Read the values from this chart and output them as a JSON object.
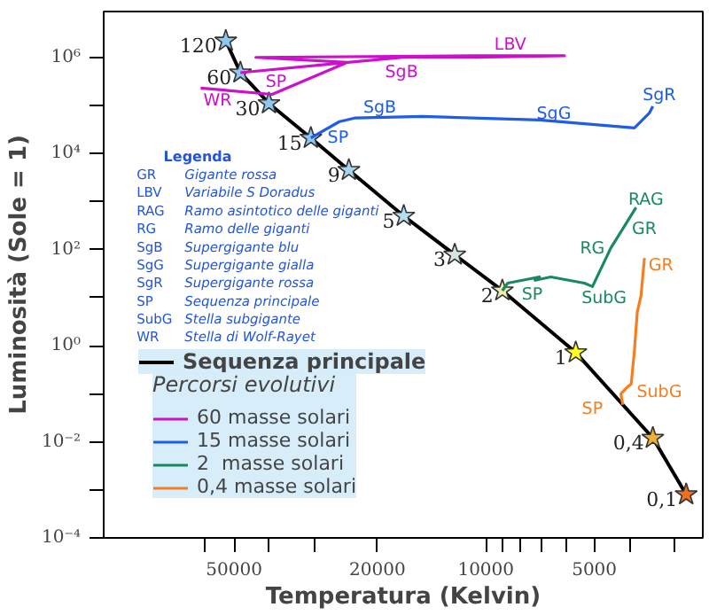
{
  "chart_data": {
    "type": "line",
    "xlabel": "Temperatura (Kelvin)",
    "ylabel": "Luminosità (Sole = 1)",
    "log": "xy",
    "xlim": [
      115000,
      2500
    ],
    "ylim": [
      0.0001,
      9000000
    ],
    "xticks": [
      {
        "value": 60000,
        "label": null
      },
      50000,
      {
        "value": 40000,
        "label": null
      },
      {
        "value": 30000,
        "label": null
      },
      20000,
      10000,
      {
        "value": 9000,
        "label": null
      },
      {
        "value": 8000,
        "label": null
      },
      {
        "value": 7000,
        "label": null
      },
      {
        "value": 6000,
        "label": null
      },
      5000,
      {
        "value": 4000,
        "label": null
      },
      {
        "value": 3000,
        "label": null
      }
    ],
    "yticks": [
      {
        "value": 0.0001,
        "label": "10⁻⁴"
      },
      {
        "value": 0.001,
        "label": null
      },
      {
        "value": 0.01,
        "label": "10⁻²"
      },
      {
        "value": 0.1,
        "label": null
      },
      {
        "value": 1,
        "label": "10⁰"
      },
      {
        "value": 10,
        "label": null
      },
      {
        "value": 100,
        "label": "10²"
      },
      {
        "value": 1000,
        "label": null
      },
      {
        "value": 10000,
        "label": "10⁴"
      },
      {
        "value": 100000,
        "label": null
      },
      {
        "value": 1000000,
        "label": "10⁶"
      }
    ],
    "legend": "bottom left",
    "legend_title": "Percorsi evolutivi",
    "grid": false,
    "series": [
      {
        "name": "Sequenza principale",
        "color": "#000000",
        "marker": "star",
        "colors": [
          "#8ec8f0",
          "#8ec8f0",
          "#8ec8f0",
          "#8ec8f0",
          "#a8d4f0",
          "#b8dcf0",
          "#d8e4e0",
          "#eeeeb0",
          "#ffff20",
          "#f0b030",
          "#f07020"
        ],
        "x": [
          52700,
          48000,
          40000,
          30600,
          24000,
          16900,
          12200,
          9000,
          5630,
          3440,
          2780
        ],
        "values": [
          2200000,
          480000,
          110000,
          21000,
          4500,
          500,
          78,
          14,
          0.72,
          0.012,
          0.0008
        ]
      },
      {
        "name": "60 masse solari",
        "color": "#cc11cc",
        "x": [
          48000,
          24200,
          17000,
          10700,
          6050,
          10700,
          43500,
          24200,
          39200,
          61900
        ],
        "values": [
          480000,
          790000,
          1000000,
          1000000,
          1080000,
          1080000,
          1000000,
          790000,
          170000,
          230000
        ]
      },
      {
        "name": "15 masse solari",
        "color": "#1f5de8",
        "x": [
          30600,
          25500,
          23000,
          15000,
          7100,
          3870,
          3520,
          3440
        ],
        "values": [
          21000,
          46000,
          55000,
          59000,
          50000,
          34000,
          69000,
          96000
        ]
      },
      {
        "name": "2  masse solari",
        "color": "#1a8a5e",
        "x": [
          9000,
          8700,
          7100,
          7300,
          6600,
          5330,
          5060,
          4500,
          3830
        ],
        "values": [
          14,
          20,
          27,
          23,
          27,
          20,
          17,
          108,
          750
        ]
      },
      {
        "name": "0,4 masse solari",
        "color": "#f57e20",
        "x": [
          4170,
          4220,
          4040,
          3950,
          3870,
          3800,
          3710,
          3630
        ],
        "values": [
          0.059,
          0.1,
          0.14,
          0.16,
          0.79,
          5.0,
          11,
          67
        ]
      }
    ],
    "annotations": [
      {
        "text": "120",
        "x": 52700,
        "y": 2200000
      },
      {
        "text": "60",
        "x": 48000,
        "y": 480000
      },
      {
        "text": "30",
        "x": 40000,
        "y": 110000
      },
      {
        "text": "15",
        "x": 30600,
        "y": 21000
      },
      {
        "text": "9",
        "x": 24000,
        "y": 4500
      },
      {
        "text": "5",
        "x": 16900,
        "y": 500
      },
      {
        "text": "3",
        "x": 12200,
        "y": 78
      },
      {
        "text": "2",
        "x": 9000,
        "y": 14
      },
      {
        "text": "1",
        "x": 5630,
        "y": 0.72
      },
      {
        "text": "0,4",
        "x": 3440,
        "y": 0.012
      },
      {
        "text": "0,1",
        "x": 2780,
        "y": 0.0008
      },
      "LBV",
      "SgB",
      "SP",
      "WR",
      "SgB",
      "SP",
      "SgG",
      "SgR",
      "RAG",
      "GR",
      "RG",
      "SP",
      "SubG",
      "GR",
      "SubG",
      "SP",
      "Legenda",
      "GR Gigante rossa",
      "LBV Variabile S Doradus",
      "RAG Ramo asintotico delle giganti",
      "RG Ramo delle giganti",
      "SgB Supergigante blu",
      "SgG Supergigante gialla",
      "SgR Supergigante rossa",
      "SP Sequenza principale",
      "SubG Stella subgigante",
      "WR Stella di Wolf-Rayet"
    ]
  }
}
